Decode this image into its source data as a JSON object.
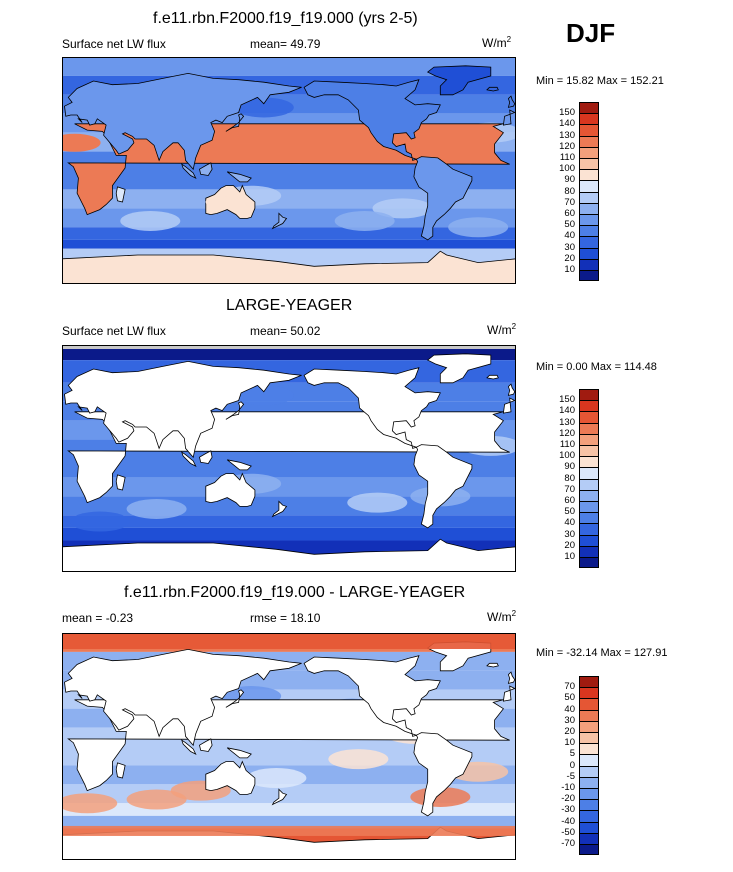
{
  "season": "DJF",
  "panels": [
    {
      "title": "f.e11.rbn.F2000.f19_f19.000 (yrs 2-5)",
      "left_label": "Surface net LW flux",
      "center_label": "mean=  49.79",
      "units": "W/m",
      "units_sup": "2",
      "minmax": "Min =  15.82 Max = 152.21"
    },
    {
      "title": "LARGE-YEAGER",
      "left_label": "Surface net LW flux",
      "center_label": "mean=  50.02",
      "units": "W/m",
      "units_sup": "2",
      "minmax": "Min =   0.00 Max = 114.48"
    },
    {
      "title": "f.e11.rbn.F2000.f19_f19.000 - LARGE-YEAGER",
      "left_label": "mean =  -0.23",
      "center_label": "rmse =  18.10",
      "units": "W/m",
      "units_sup": "2",
      "minmax": "Min = -32.14 Max = 127.91"
    }
  ],
  "chart_data": [
    {
      "type": "heatmap",
      "title": "f.e11.rbn.F2000.f19_f19.000 (yrs 2-5)",
      "variable": "Surface net LW flux",
      "units": "W/m2",
      "mean": 49.79,
      "min": 15.82,
      "max": 152.21,
      "colorbar_levels": [
        10,
        20,
        30,
        40,
        50,
        60,
        70,
        80,
        90,
        100,
        110,
        120,
        130,
        140,
        150
      ],
      "colorbar_colors": [
        "#0b1a8a",
        "#1230b8",
        "#1f4fd6",
        "#3466e0",
        "#4d7fe6",
        "#6b97ec",
        "#8db0f0",
        "#b4ccf6",
        "#dce8fb",
        "#fbe3d3",
        "#f7c3a6",
        "#f3a07c",
        "#ec7a55",
        "#e55634",
        "#d9361f",
        "#a01b10"
      ]
    },
    {
      "type": "heatmap",
      "title": "LARGE-YEAGER",
      "variable": "Surface net LW flux",
      "units": "W/m2",
      "mean": 50.02,
      "min": 0.0,
      "max": 114.48,
      "colorbar_levels": [
        10,
        20,
        30,
        40,
        50,
        60,
        70,
        80,
        90,
        100,
        110,
        120,
        130,
        140,
        150
      ],
      "colorbar_colors": [
        "#0b1a8a",
        "#1230b8",
        "#1f4fd6",
        "#3466e0",
        "#4d7fe6",
        "#6b97ec",
        "#8db0f0",
        "#b4ccf6",
        "#dce8fb",
        "#fbe3d3",
        "#f7c3a6",
        "#f3a07c",
        "#ec7a55",
        "#e55634",
        "#d9361f",
        "#a01b10"
      ]
    },
    {
      "type": "heatmap",
      "title": "f.e11.rbn.F2000.f19_f19.000 - LARGE-YEAGER",
      "units": "W/m2",
      "mean": -0.23,
      "rmse": 18.1,
      "min": -32.14,
      "max": 127.91,
      "colorbar_levels": [
        -70,
        -50,
        -40,
        -30,
        -20,
        -10,
        -5,
        0,
        5,
        10,
        20,
        30,
        40,
        50,
        70
      ],
      "colorbar_colors": [
        "#0b1a8a",
        "#1230b8",
        "#1f4fd6",
        "#3466e0",
        "#4d7fe6",
        "#6b97ec",
        "#8db0f0",
        "#b4ccf6",
        "#dce8fb",
        "#fbe3d3",
        "#f7c3a6",
        "#f3a07c",
        "#ec7a55",
        "#e55634",
        "#d9361f",
        "#a01b10"
      ]
    }
  ]
}
